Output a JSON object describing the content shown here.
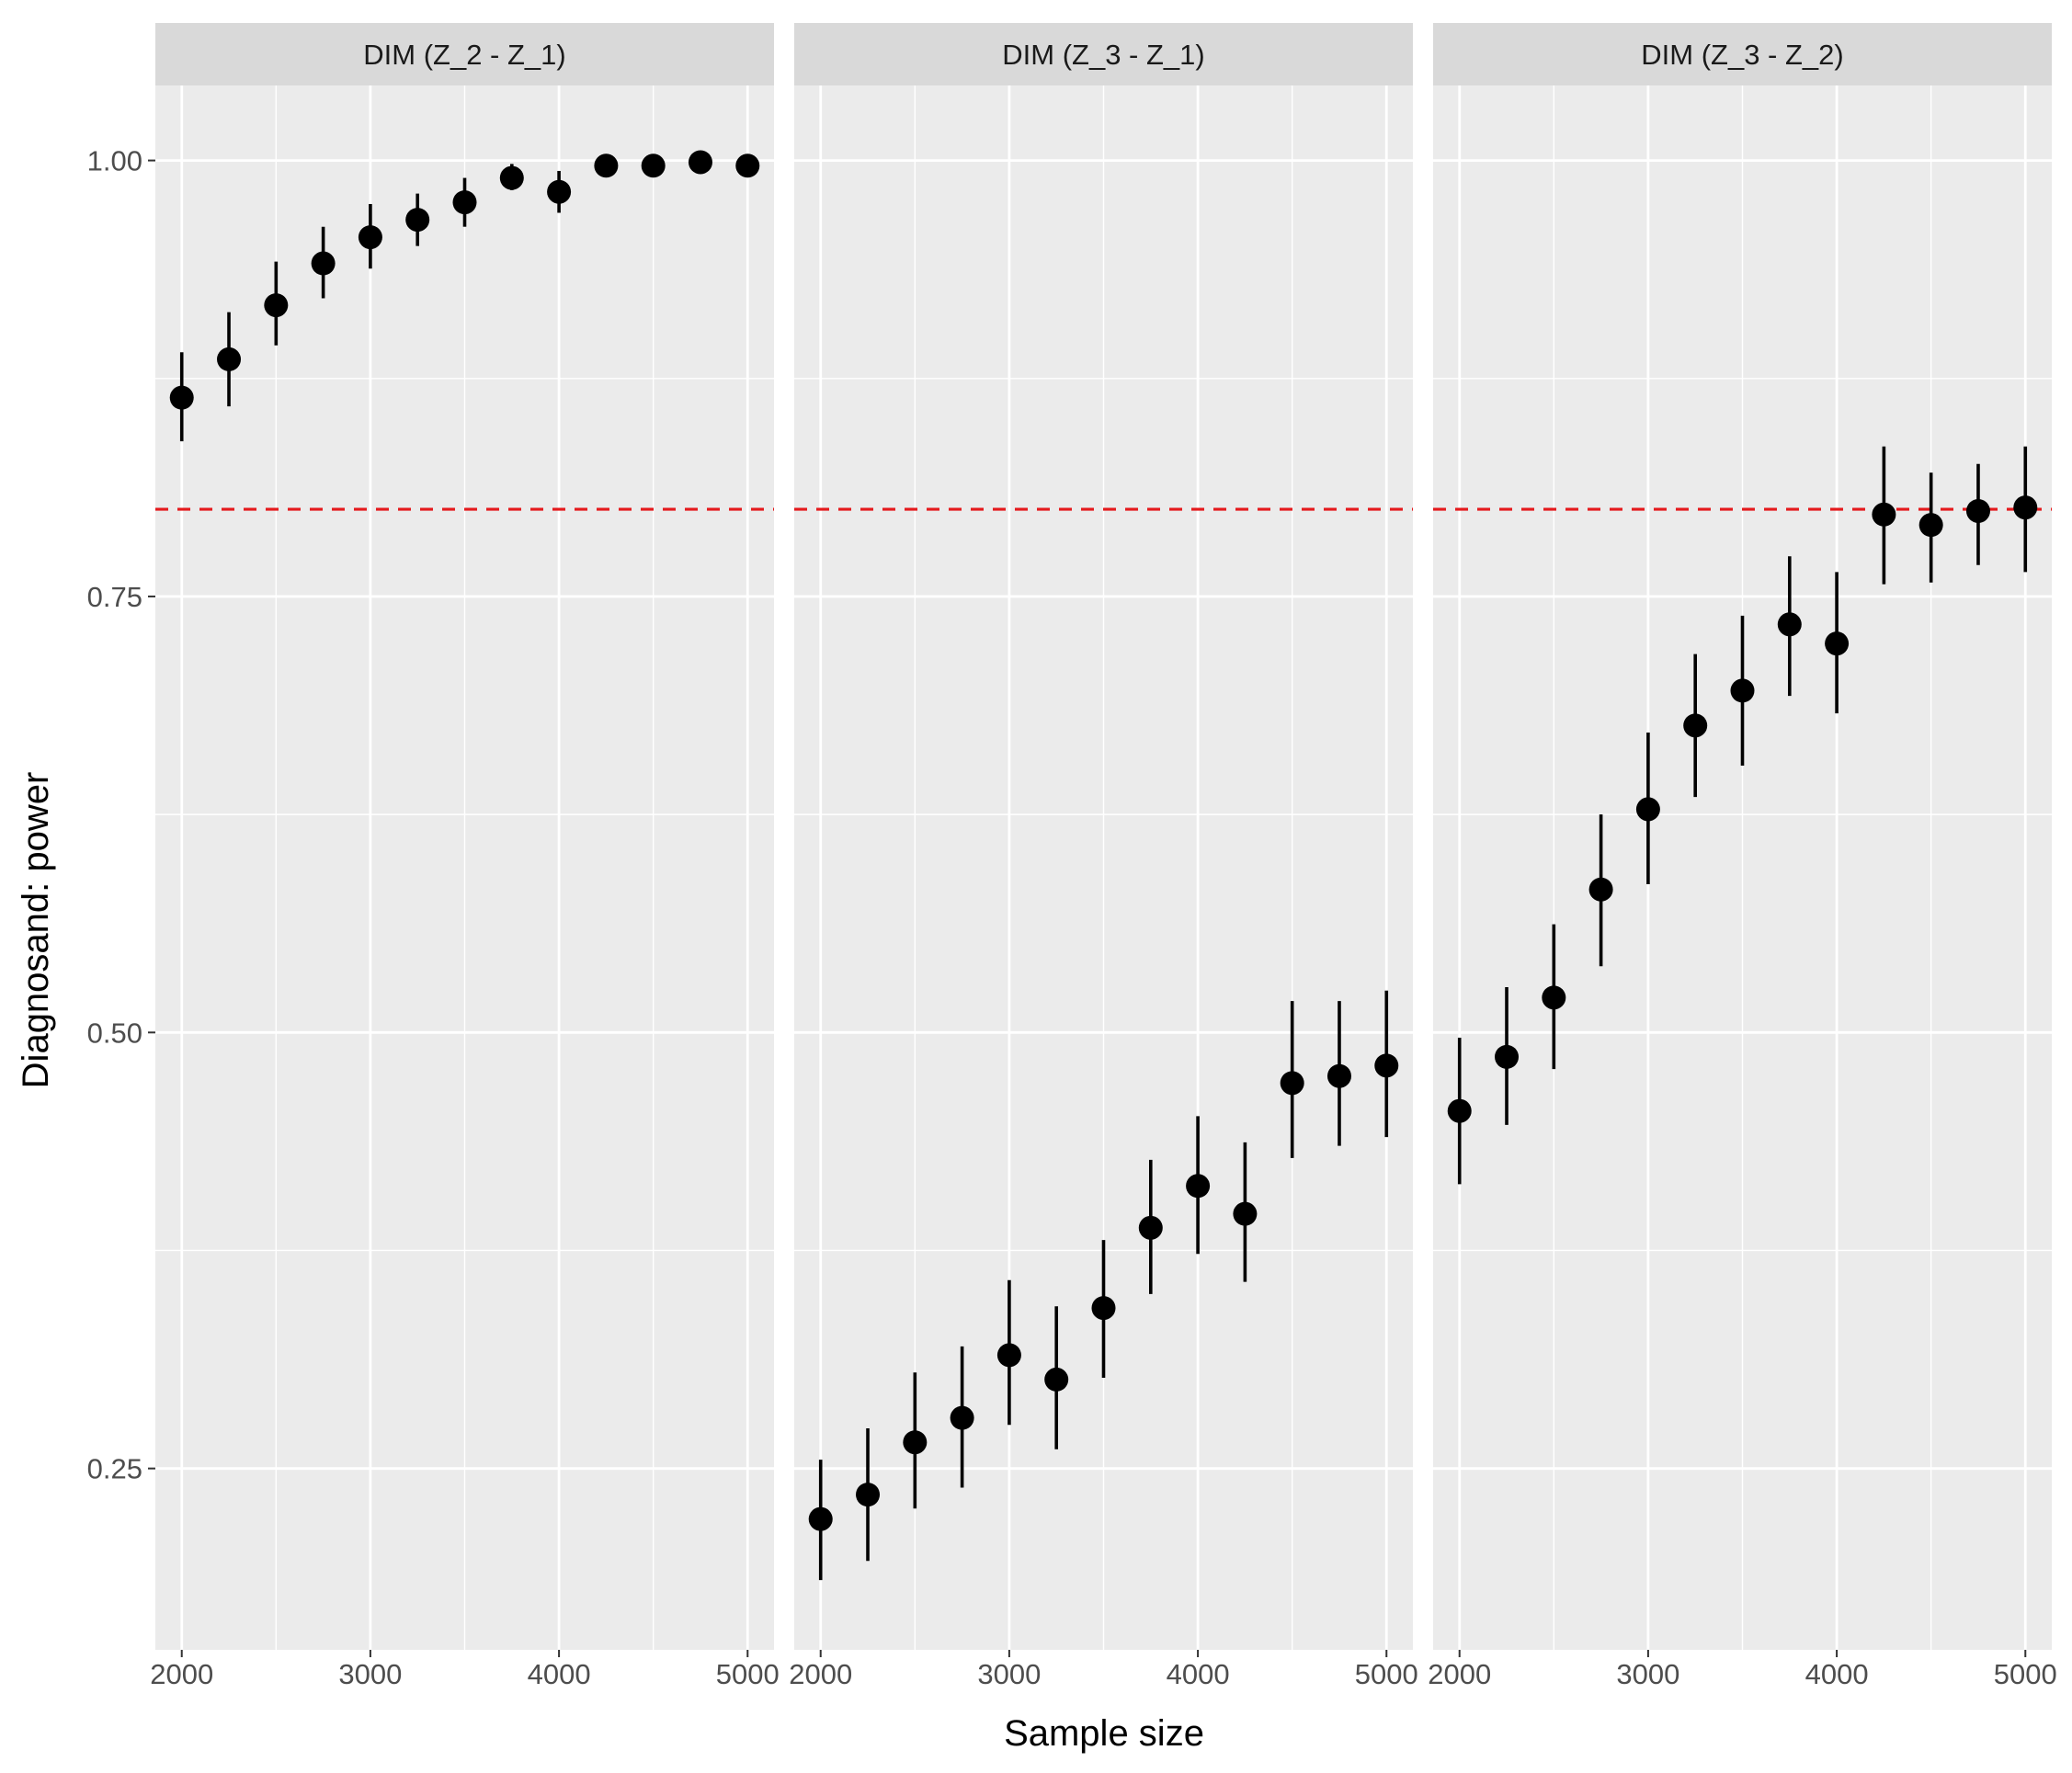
{
  "chart_data": {
    "type": "scatter",
    "xlabel": "Sample size",
    "ylabel": "Diagnosand: power",
    "x_ticks": [
      2000,
      3000,
      4000,
      5000
    ],
    "x_tick_labels": [
      "2000",
      "3000",
      "4000",
      "5000"
    ],
    "y_ticks": [
      0.25,
      0.5,
      0.75,
      1.0
    ],
    "y_tick_labels": [
      "0.25",
      "0.50",
      "0.75",
      "1.00"
    ],
    "xlim": [
      1860,
      5140
    ],
    "ylim": [
      0.146,
      1.043
    ],
    "reference_line": {
      "y": 0.8,
      "color": "#e41a1c",
      "style": "dashed"
    },
    "grid": true,
    "panels": [
      {
        "title": "DIM (Z_2 - Z_1)",
        "x": [
          2000,
          2250,
          2500,
          2750,
          3000,
          3250,
          3500,
          3750,
          4000,
          4250,
          4500,
          4750,
          5000
        ],
        "y": [
          0.864,
          0.886,
          0.917,
          0.941,
          0.956,
          0.966,
          0.976,
          0.99,
          0.982,
          0.997,
          0.997,
          0.999,
          0.997
        ],
        "lower": [
          0.839,
          0.859,
          0.894,
          0.921,
          0.938,
          0.951,
          0.962,
          0.983,
          0.97,
          0.992,
          0.992,
          0.995,
          0.992
        ],
        "upper": [
          0.89,
          0.913,
          0.942,
          0.962,
          0.975,
          0.981,
          0.99,
          0.998,
          0.994,
          1.0,
          1.0,
          1.0,
          1.0
        ]
      },
      {
        "title": "DIM (Z_3 - Z_1)",
        "x": [
          2000,
          2250,
          2500,
          2750,
          3000,
          3250,
          3500,
          3750,
          4000,
          4250,
          4500,
          4750,
          5000
        ],
        "y": [
          0.221,
          0.235,
          0.265,
          0.279,
          0.315,
          0.301,
          0.342,
          0.388,
          0.412,
          0.396,
          0.471,
          0.475,
          0.481
        ],
        "lower": [
          0.186,
          0.197,
          0.227,
          0.239,
          0.275,
          0.261,
          0.302,
          0.35,
          0.373,
          0.357,
          0.428,
          0.435,
          0.44
        ],
        "upper": [
          0.255,
          0.273,
          0.305,
          0.32,
          0.358,
          0.343,
          0.381,
          0.427,
          0.452,
          0.437,
          0.518,
          0.518,
          0.524
        ]
      },
      {
        "title": "DIM (Z_3 - Z_2)",
        "x": [
          2000,
          2250,
          2500,
          2750,
          3000,
          3250,
          3500,
          3750,
          4000,
          4250,
          4500,
          4750,
          5000
        ],
        "y": [
          0.455,
          0.486,
          0.52,
          0.582,
          0.628,
          0.676,
          0.696,
          0.734,
          0.723,
          0.797,
          0.791,
          0.799,
          0.801
        ],
        "lower": [
          0.413,
          0.447,
          0.479,
          0.538,
          0.585,
          0.635,
          0.653,
          0.693,
          0.683,
          0.757,
          0.758,
          0.768,
          0.764
        ],
        "upper": [
          0.497,
          0.526,
          0.562,
          0.625,
          0.672,
          0.717,
          0.739,
          0.773,
          0.764,
          0.836,
          0.821,
          0.826,
          0.836
        ]
      }
    ]
  },
  "colors": {
    "panel_background": "#ebebeb",
    "strip_background": "#d9d9d9",
    "grid": "#ffffff",
    "point": "#000000",
    "reference_line": "#e41a1c"
  }
}
